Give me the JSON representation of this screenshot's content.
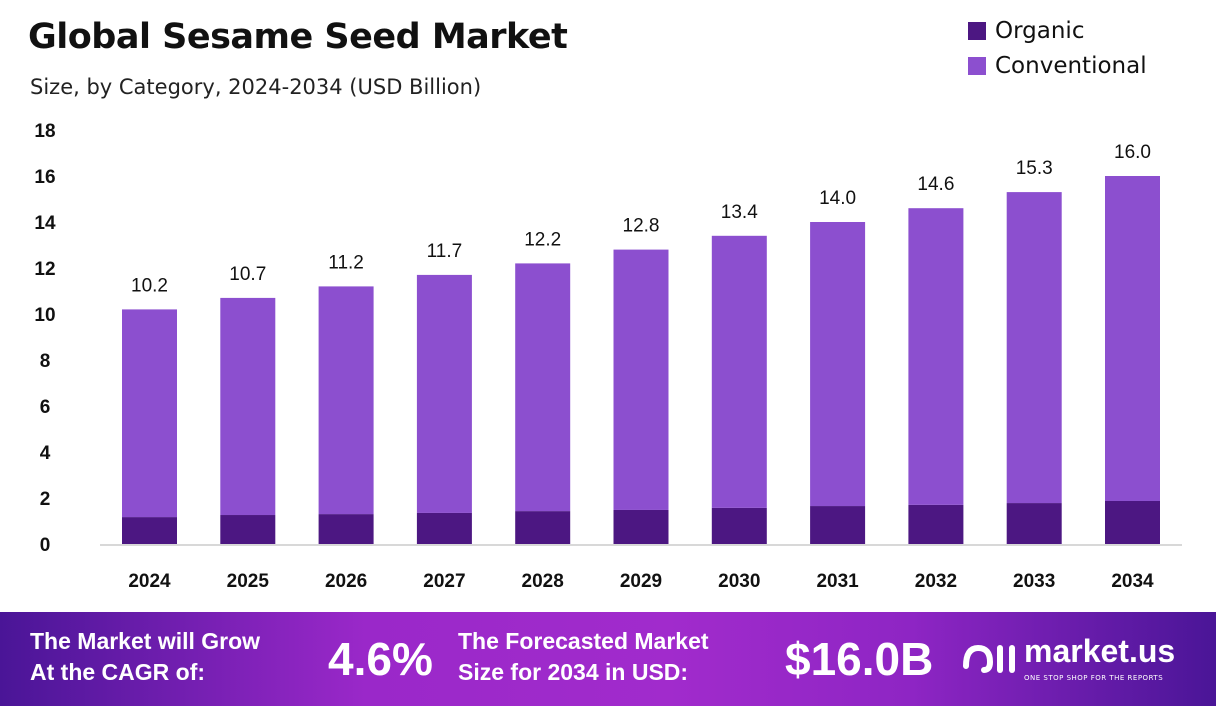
{
  "chart_data": {
    "type": "bar",
    "stacked": true,
    "title": "Global Sesame Seed Market",
    "subtitle": "Size, by Category, 2024-2034 (USD Billion)",
    "categories": [
      "2024",
      "2025",
      "2026",
      "2027",
      "2028",
      "2029",
      "2030",
      "2031",
      "2032",
      "2033",
      "2034"
    ],
    "totals": [
      10.2,
      10.7,
      11.2,
      11.7,
      12.2,
      12.8,
      13.4,
      14.0,
      14.6,
      15.3,
      16.0
    ],
    "total_labels": [
      "10.2",
      "10.7",
      "11.2",
      "11.7",
      "12.2",
      "12.8",
      "13.4",
      "14.0",
      "14.6",
      "15.3",
      "16.0"
    ],
    "series": [
      {
        "name": "Organic",
        "color": "#4c1782",
        "values": [
          1.17,
          1.26,
          1.3,
          1.35,
          1.43,
          1.48,
          1.57,
          1.65,
          1.7,
          1.78,
          1.87
        ]
      },
      {
        "name": "Conventional",
        "color": "#8c4fcf",
        "values": [
          9.03,
          9.44,
          9.9,
          10.35,
          10.77,
          11.32,
          11.83,
          12.35,
          12.9,
          13.52,
          14.13
        ]
      }
    ],
    "ylim": [
      0,
      18
    ],
    "yticks": [
      0,
      2,
      4,
      6,
      8,
      10,
      12,
      14,
      16,
      18
    ],
    "xlabel": "",
    "ylabel": "",
    "legend": "top-right",
    "grid": false
  },
  "footer": {
    "cagr_text_1": "The Market will Grow",
    "cagr_text_2": "At the CAGR of:",
    "cagr_value": "4.6%",
    "forecast_text_1": "The Forecasted Market",
    "forecast_text_2": "Size for 2034 in USD:",
    "forecast_value": "$16.0B",
    "logo_name": "market.us",
    "logo_tagline": "ONE STOP SHOP FOR THE REPORTS"
  }
}
